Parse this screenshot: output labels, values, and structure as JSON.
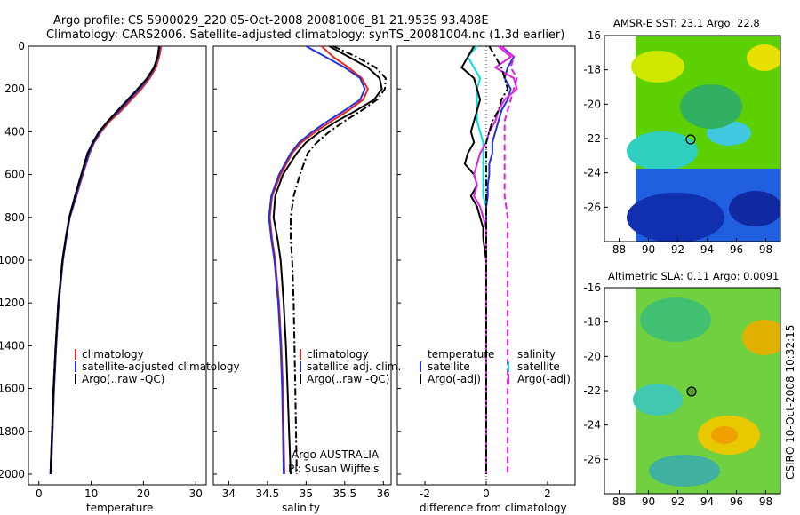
{
  "header": {
    "title_line1": "Argo profile: CS 5900029_220 05-Oct-2008 20081006_81 21.953S 93.408E",
    "title_line2": "Climatology: CARS2006. Satellite-adjusted climatology: synTS_20081004.nc (1.3d earlier)"
  },
  "footer": {
    "stamp": "CSIRO 10-Oct-2008 10:32:15"
  },
  "colors": {
    "climatology": "#e8281c",
    "satellite": "#2030e0",
    "argo": "#000000",
    "diff_temperature": "#00e0e0",
    "diff_salinity": "#e020e0"
  },
  "chart_data": [
    {
      "type": "line",
      "xlabel": "temperature",
      "xlim": [
        -2,
        32
      ],
      "xticks": [
        0,
        10,
        20,
        30
      ],
      "ylim": [
        2050,
        0
      ],
      "yticks": [
        0,
        200,
        400,
        600,
        800,
        1000,
        1200,
        1400,
        1600,
        1800,
        2000
      ],
      "legend": [
        "climatology",
        "satellite-adjusted climatology",
        "Argo(..raw -QC)"
      ],
      "depth": [
        0,
        50,
        100,
        150,
        200,
        250,
        300,
        350,
        400,
        450,
        500,
        600,
        700,
        800,
        900,
        1000,
        1200,
        1400,
        1600,
        1800,
        2000
      ],
      "series": [
        {
          "name": "climatology",
          "style": "solid",
          "values": [
            23.4,
            23.0,
            22.4,
            21.2,
            19.6,
            17.7,
            15.8,
            13.6,
            11.9,
            10.6,
            9.7,
            8.4,
            7.2,
            5.9,
            5.2,
            4.6,
            3.8,
            3.3,
            2.9,
            2.6,
            2.3
          ]
        },
        {
          "name": "satellite-adjusted climatology",
          "style": "solid",
          "values": [
            23.1,
            22.8,
            22.1,
            20.9,
            19.2,
            17.3,
            15.4,
            13.3,
            11.7,
            10.5,
            9.6,
            8.3,
            7.1,
            5.9,
            5.2,
            4.6,
            3.8,
            3.3,
            2.9,
            2.6,
            2.3
          ]
        },
        {
          "name": "Argo(..raw -QC)",
          "style": "solid",
          "values": [
            23.0,
            22.7,
            22.0,
            20.7,
            18.9,
            17.0,
            15.1,
            13.2,
            11.5,
            10.3,
            9.3,
            8.1,
            6.9,
            5.8,
            5.1,
            4.5,
            3.7,
            3.2,
            2.8,
            2.5,
            2.2
          ]
        },
        {
          "name": "Argo(..raw -QC)",
          "style": "dashdot",
          "values": [
            23.0,
            22.7,
            22.0,
            20.7,
            18.9,
            17.0,
            15.1,
            13.2,
            11.5,
            10.3,
            9.3,
            8.1,
            6.9,
            5.8,
            5.1,
            4.5,
            3.7,
            3.2,
            2.8,
            2.5,
            2.2
          ]
        }
      ]
    },
    {
      "type": "line",
      "xlabel": "salinity",
      "xlim": [
        33.8,
        36.1
      ],
      "xticks": [
        34,
        34.5,
        35,
        35.5,
        36
      ],
      "ylim": [
        2050,
        0
      ],
      "legend": [
        "climatology",
        "satellite adj. clim.",
        "Argo(..raw -QC)"
      ],
      "annotations": [
        "Argo AUSTRALIA",
        "PI: Susan Wijffels"
      ],
      "depth": [
        0,
        50,
        100,
        150,
        200,
        250,
        300,
        350,
        400,
        450,
        500,
        600,
        700,
        800,
        900,
        1000,
        1200,
        1400,
        1600,
        1800,
        2000
      ],
      "series": [
        {
          "name": "climatology",
          "style": "solid",
          "values": [
            35.2,
            35.35,
            35.55,
            35.72,
            35.8,
            35.74,
            35.55,
            35.33,
            35.12,
            34.94,
            34.82,
            34.67,
            34.56,
            34.53,
            34.56,
            34.6,
            34.65,
            34.68,
            34.7,
            34.71,
            34.72
          ]
        },
        {
          "name": "satellite adj. clim.",
          "style": "solid",
          "values": [
            35.0,
            35.25,
            35.5,
            35.7,
            35.76,
            35.7,
            35.5,
            35.28,
            35.08,
            34.91,
            34.8,
            34.65,
            34.55,
            34.52,
            34.55,
            34.59,
            34.64,
            34.67,
            34.69,
            34.7,
            34.71
          ]
        },
        {
          "name": "Argo(..raw -QC)",
          "style": "solid",
          "values": [
            35.3,
            35.55,
            35.8,
            35.95,
            35.98,
            35.88,
            35.65,
            35.4,
            35.18,
            35.0,
            34.88,
            34.7,
            34.6,
            34.58,
            34.63,
            34.67,
            34.71,
            34.74,
            34.76,
            34.78,
            34.8
          ]
        },
        {
          "name": "Argo(..raw -QC)",
          "style": "dashdot",
          "values": [
            35.35,
            35.65,
            35.9,
            36.03,
            36.02,
            35.92,
            35.72,
            35.5,
            35.3,
            35.14,
            35.02,
            34.92,
            34.84,
            34.8,
            34.8,
            34.82,
            34.84,
            34.85,
            34.86,
            34.87,
            34.88
          ]
        }
      ]
    },
    {
      "type": "line",
      "xlabel": "difference from climatology",
      "xlim": [
        -2.9,
        2.9
      ],
      "xticks": [
        -2,
        0,
        2
      ],
      "ylim": [
        2050,
        0
      ],
      "legend_left": [
        "temperature",
        "satellite",
        "Argo(-adj)"
      ],
      "legend_right": [
        "salinity",
        "satellite",
        "Argo(-adj)"
      ],
      "depth": [
        0,
        50,
        100,
        150,
        200,
        250,
        300,
        350,
        400,
        450,
        500,
        550,
        600,
        650,
        700,
        750,
        800,
        850,
        900,
        1000,
        1200,
        1400,
        1600,
        1800,
        2000
      ],
      "series": [
        {
          "name": "temperature satellite",
          "style": "solid",
          "color_key": "diff_temperature",
          "values": [
            -0.3,
            -0.6,
            -0.4,
            -0.2,
            -0.3,
            -0.3,
            -0.3,
            -0.3,
            -0.2,
            -0.1,
            -0.1,
            -0.1,
            -0.1,
            -0.1,
            -0.1,
            0.0,
            0.0,
            0.0,
            0.0,
            0.0,
            0.0,
            0.0,
            0.0,
            0.0,
            0.0
          ]
        },
        {
          "name": "temperature Argo(-adj)",
          "style": "solid",
          "color_key": "argo",
          "values": [
            -0.4,
            -0.6,
            -0.8,
            -0.4,
            -0.3,
            -0.2,
            -0.3,
            -0.4,
            -0.5,
            -0.4,
            -0.6,
            -0.7,
            -0.4,
            -0.3,
            -0.5,
            -0.3,
            -0.2,
            -0.1,
            -0.1,
            0.0,
            0.0,
            0.0,
            0.0,
            0.0,
            0.0
          ]
        },
        {
          "name": "salinity satellite",
          "style": "solid",
          "color_key": "satellite",
          "values": [
            0.5,
            0.9,
            0.7,
            0.6,
            0.8,
            0.7,
            0.5,
            0.4,
            0.3,
            0.2,
            0.2,
            0.1,
            0.1,
            0.05,
            0.05,
            0.0,
            0.0,
            0.0,
            0.0,
            0.0,
            0.0,
            0.0,
            0.0,
            0.0,
            0.0
          ]
        },
        {
          "name": "salinity Argo(-adj)",
          "style": "solid",
          "color_key": "diff_salinity",
          "values": [
            0.4,
            0.8,
            0.3,
            0.9,
            1.0,
            0.6,
            0.4,
            0.3,
            0.1,
            0.0,
            -0.2,
            -0.3,
            -0.4,
            -0.3,
            -0.4,
            -0.2,
            -0.1,
            0.0,
            0.0,
            0.0,
            0.0,
            0.0,
            0.0,
            0.0,
            0.0
          ]
        },
        {
          "name": "salinity Argo(-adj)",
          "style": "dashed",
          "color_key": "diff_salinity",
          "values": [
            0.5,
            0.9,
            0.8,
            1.0,
            0.9,
            0.8,
            0.7,
            0.6,
            0.6,
            0.6,
            0.6,
            0.6,
            0.6,
            0.6,
            0.6,
            0.65,
            0.7,
            0.7,
            0.7,
            0.7,
            0.7,
            0.7,
            0.7,
            0.7,
            0.7
          ]
        },
        {
          "name": "Argo(-adj)",
          "style": "dashdot",
          "color_key": "argo",
          "values": [
            0.1,
            0.3,
            0.5,
            0.6,
            0.7,
            0.5,
            0.4,
            0.2,
            0.1,
            0.0,
            0.0,
            0.0,
            0.0,
            0.0,
            0.0,
            0.0,
            0.0,
            0.0,
            0.0,
            0.0,
            0.0,
            0.0,
            0.0,
            0.0,
            0.0
          ]
        }
      ]
    },
    {
      "type": "heatmap",
      "title": "AMSR-E SST: 23.1  Argo: 22.8",
      "xlim": [
        87,
        99
      ],
      "ylim": [
        -28,
        -16
      ],
      "xticks": [
        88,
        90,
        92,
        94,
        96,
        98
      ],
      "yticks": [
        -16,
        -18,
        -20,
        -22,
        -24,
        -26
      ],
      "data_extent_lon": [
        90,
        99
      ],
      "marker": {
        "lon": 93.408,
        "lat": -21.953
      },
      "colormap": "jet"
    },
    {
      "type": "heatmap",
      "title": "Altimetric SLA: 0.11  Argo: 0.0091",
      "xlim": [
        87,
        99
      ],
      "ylim": [
        -28,
        -16
      ],
      "xticks": [
        88,
        90,
        92,
        94,
        96,
        98
      ],
      "yticks": [
        -16,
        -18,
        -20,
        -22,
        -24,
        -26
      ],
      "data_extent_lon": [
        90,
        99
      ],
      "marker": {
        "lon": 93.408,
        "lat": -21.953
      },
      "colormap": "jet"
    }
  ]
}
